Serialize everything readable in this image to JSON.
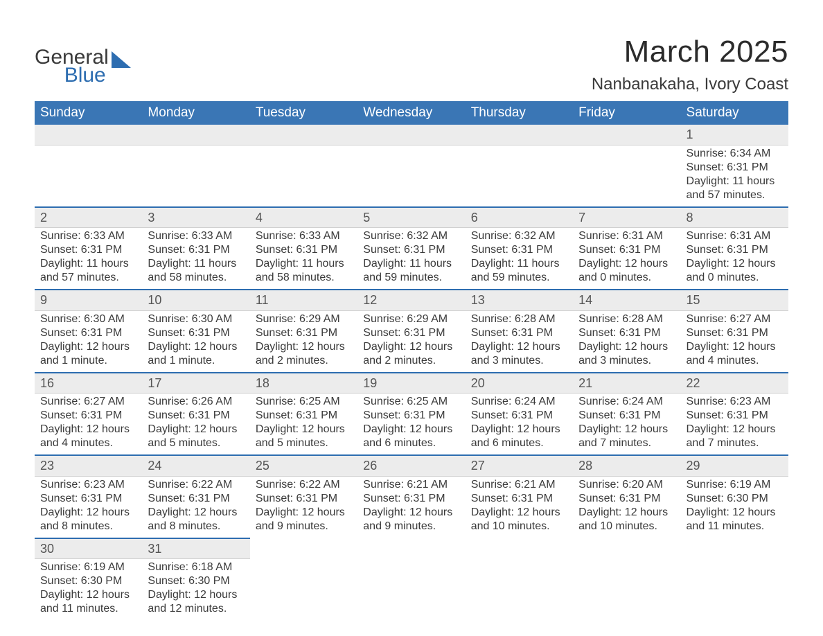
{
  "logo": {
    "word1": "General",
    "word2": "Blue"
  },
  "title": "March 2025",
  "subtitle": "Nanbanakaha, Ivory Coast",
  "colors": {
    "header_bg": "#3a76b5",
    "header_text": "#ffffff",
    "row_sep": "#2d6db0",
    "daynum_bg": "#ececec",
    "text": "#3a3a3a",
    "logo_blue": "#2d6db0"
  },
  "typography": {
    "title_fontsize": 44,
    "subtitle_fontsize": 24,
    "dayheader_fontsize": 19,
    "daynum_fontsize": 18,
    "cell_fontsize": 16,
    "logo_fontsize": 30
  },
  "days_of_week": [
    "Sunday",
    "Monday",
    "Tuesday",
    "Wednesday",
    "Thursday",
    "Friday",
    "Saturday"
  ],
  "labels": {
    "sunrise": "Sunrise:",
    "sunset": "Sunset:",
    "daylight": "Daylight:"
  },
  "weeks": [
    [
      null,
      null,
      null,
      null,
      null,
      null,
      {
        "n": "1",
        "sr": "6:34 AM",
        "ss": "6:31 PM",
        "dl": "11 hours and 57 minutes."
      }
    ],
    [
      {
        "n": "2",
        "sr": "6:33 AM",
        "ss": "6:31 PM",
        "dl": "11 hours and 57 minutes."
      },
      {
        "n": "3",
        "sr": "6:33 AM",
        "ss": "6:31 PM",
        "dl": "11 hours and 58 minutes."
      },
      {
        "n": "4",
        "sr": "6:33 AM",
        "ss": "6:31 PM",
        "dl": "11 hours and 58 minutes."
      },
      {
        "n": "5",
        "sr": "6:32 AM",
        "ss": "6:31 PM",
        "dl": "11 hours and 59 minutes."
      },
      {
        "n": "6",
        "sr": "6:32 AM",
        "ss": "6:31 PM",
        "dl": "11 hours and 59 minutes."
      },
      {
        "n": "7",
        "sr": "6:31 AM",
        "ss": "6:31 PM",
        "dl": "12 hours and 0 minutes."
      },
      {
        "n": "8",
        "sr": "6:31 AM",
        "ss": "6:31 PM",
        "dl": "12 hours and 0 minutes."
      }
    ],
    [
      {
        "n": "9",
        "sr": "6:30 AM",
        "ss": "6:31 PM",
        "dl": "12 hours and 1 minute."
      },
      {
        "n": "10",
        "sr": "6:30 AM",
        "ss": "6:31 PM",
        "dl": "12 hours and 1 minute."
      },
      {
        "n": "11",
        "sr": "6:29 AM",
        "ss": "6:31 PM",
        "dl": "12 hours and 2 minutes."
      },
      {
        "n": "12",
        "sr": "6:29 AM",
        "ss": "6:31 PM",
        "dl": "12 hours and 2 minutes."
      },
      {
        "n": "13",
        "sr": "6:28 AM",
        "ss": "6:31 PM",
        "dl": "12 hours and 3 minutes."
      },
      {
        "n": "14",
        "sr": "6:28 AM",
        "ss": "6:31 PM",
        "dl": "12 hours and 3 minutes."
      },
      {
        "n": "15",
        "sr": "6:27 AM",
        "ss": "6:31 PM",
        "dl": "12 hours and 4 minutes."
      }
    ],
    [
      {
        "n": "16",
        "sr": "6:27 AM",
        "ss": "6:31 PM",
        "dl": "12 hours and 4 minutes."
      },
      {
        "n": "17",
        "sr": "6:26 AM",
        "ss": "6:31 PM",
        "dl": "12 hours and 5 minutes."
      },
      {
        "n": "18",
        "sr": "6:25 AM",
        "ss": "6:31 PM",
        "dl": "12 hours and 5 minutes."
      },
      {
        "n": "19",
        "sr": "6:25 AM",
        "ss": "6:31 PM",
        "dl": "12 hours and 6 minutes."
      },
      {
        "n": "20",
        "sr": "6:24 AM",
        "ss": "6:31 PM",
        "dl": "12 hours and 6 minutes."
      },
      {
        "n": "21",
        "sr": "6:24 AM",
        "ss": "6:31 PM",
        "dl": "12 hours and 7 minutes."
      },
      {
        "n": "22",
        "sr": "6:23 AM",
        "ss": "6:31 PM",
        "dl": "12 hours and 7 minutes."
      }
    ],
    [
      {
        "n": "23",
        "sr": "6:23 AM",
        "ss": "6:31 PM",
        "dl": "12 hours and 8 minutes."
      },
      {
        "n": "24",
        "sr": "6:22 AM",
        "ss": "6:31 PM",
        "dl": "12 hours and 8 minutes."
      },
      {
        "n": "25",
        "sr": "6:22 AM",
        "ss": "6:31 PM",
        "dl": "12 hours and 9 minutes."
      },
      {
        "n": "26",
        "sr": "6:21 AM",
        "ss": "6:31 PM",
        "dl": "12 hours and 9 minutes."
      },
      {
        "n": "27",
        "sr": "6:21 AM",
        "ss": "6:31 PM",
        "dl": "12 hours and 10 minutes."
      },
      {
        "n": "28",
        "sr": "6:20 AM",
        "ss": "6:31 PM",
        "dl": "12 hours and 10 minutes."
      },
      {
        "n": "29",
        "sr": "6:19 AM",
        "ss": "6:30 PM",
        "dl": "12 hours and 11 minutes."
      }
    ],
    [
      {
        "n": "30",
        "sr": "6:19 AM",
        "ss": "6:30 PM",
        "dl": "12 hours and 11 minutes."
      },
      {
        "n": "31",
        "sr": "6:18 AM",
        "ss": "6:30 PM",
        "dl": "12 hours and 12 minutes."
      },
      null,
      null,
      null,
      null,
      null
    ]
  ]
}
